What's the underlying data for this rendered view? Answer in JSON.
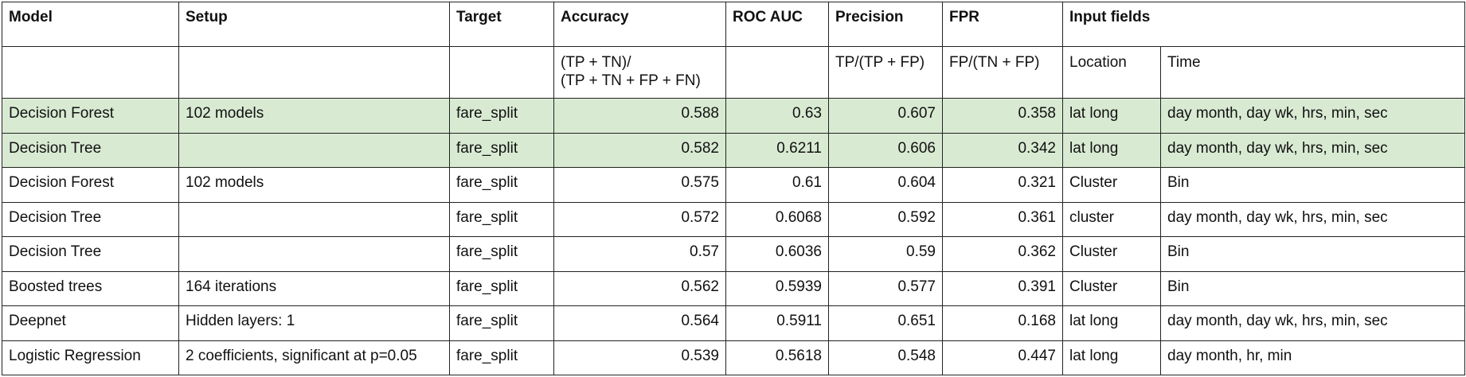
{
  "table": {
    "highlight_color": "#d9ead3",
    "header": [
      "Model",
      "Setup",
      "Target",
      "Accuracy",
      "ROC AUC",
      "Precision",
      "FPR",
      "Input fields"
    ],
    "subheader": {
      "accuracy": [
        "(TP + TN)/",
        "(TP + TN + FP + FN)"
      ],
      "precision": "TP/(TP + FP)",
      "fpr": "FP/(TN + FP)",
      "location": "Location",
      "time": "Time"
    },
    "rows": [
      {
        "model": "Decision Forest",
        "setup": "102 models",
        "target": "fare_split",
        "accuracy": 0.588,
        "roc_auc": 0.63,
        "precision": 0.607,
        "fpr": 0.358,
        "location": "lat long",
        "time": "day month, day wk, hrs, min, sec",
        "highlighted": true
      },
      {
        "model": "Decision Tree",
        "target": "fare_split",
        "accuracy": 0.582,
        "roc_auc": 0.6211,
        "precision": 0.606,
        "fpr": 0.342,
        "location": "lat long",
        "time": "day month, day wk, hrs, min, sec",
        "highlighted": true
      },
      {
        "model": "Decision Forest",
        "setup": "102 models",
        "target": "fare_split",
        "accuracy": 0.575,
        "roc_auc": 0.61,
        "precision": 0.604,
        "fpr": 0.321,
        "location": "Cluster",
        "time": "Bin"
      },
      {
        "model": "Decision Tree",
        "target": "fare_split",
        "accuracy": 0.572,
        "roc_auc": 0.6068,
        "precision": 0.592,
        "fpr": 0.361,
        "location": "cluster",
        "time": "day month, day wk, hrs, min, sec"
      },
      {
        "model": "Decision Tree",
        "target": "fare_split",
        "accuracy": 0.57,
        "roc_auc": 0.6036,
        "precision": 0.59,
        "fpr": 0.362,
        "location": "Cluster",
        "time": "Bin"
      },
      {
        "model": "Boosted trees",
        "setup": "164 iterations",
        "target": "fare_split",
        "accuracy": 0.562,
        "roc_auc": 0.5939,
        "precision": 0.577,
        "fpr": 0.391,
        "location": "Cluster",
        "time": "Bin"
      },
      {
        "model": "Deepnet",
        "setup": "Hidden layers: 1",
        "target": "fare_split",
        "accuracy": 0.564,
        "roc_auc": 0.5911,
        "precision": 0.651,
        "fpr": 0.168,
        "location": "lat long",
        "time": "day month, day wk, hrs, min, sec"
      },
      {
        "model": "Logistic Regression",
        "setup": "2 coefficients, significant at p=0.05",
        "target": "fare_split",
        "accuracy": 0.539,
        "roc_auc": 0.5618,
        "precision": 0.548,
        "fpr": 0.447,
        "location": "lat long",
        "time": "day month, hr, min"
      }
    ]
  }
}
